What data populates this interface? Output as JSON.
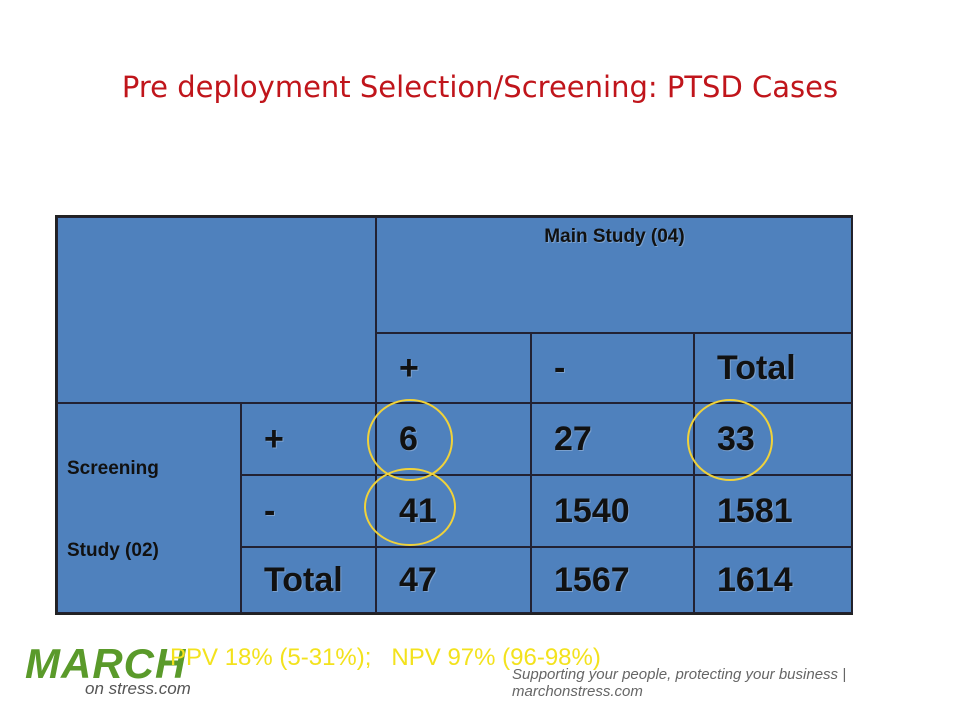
{
  "title": "Pre deployment Selection/Screening: PTSD Cases",
  "table": {
    "header": "Main Study (04)",
    "columns": [
      "+",
      "-",
      "Total"
    ],
    "row_group": [
      "Screening",
      "Study (02)"
    ],
    "rows": [
      [
        "+",
        6,
        27,
        33
      ],
      [
        "-",
        41,
        1540,
        1581
      ],
      [
        "Total",
        47,
        1567,
        1614
      ]
    ]
  },
  "summary": "PPV 18% (5-31%);   NPV 97% (96-98%)",
  "logo": {
    "name": "MARCH",
    "sub": "on stress.com"
  },
  "tagline": "Supporting your people, protecting your business | marchonstress.com"
}
